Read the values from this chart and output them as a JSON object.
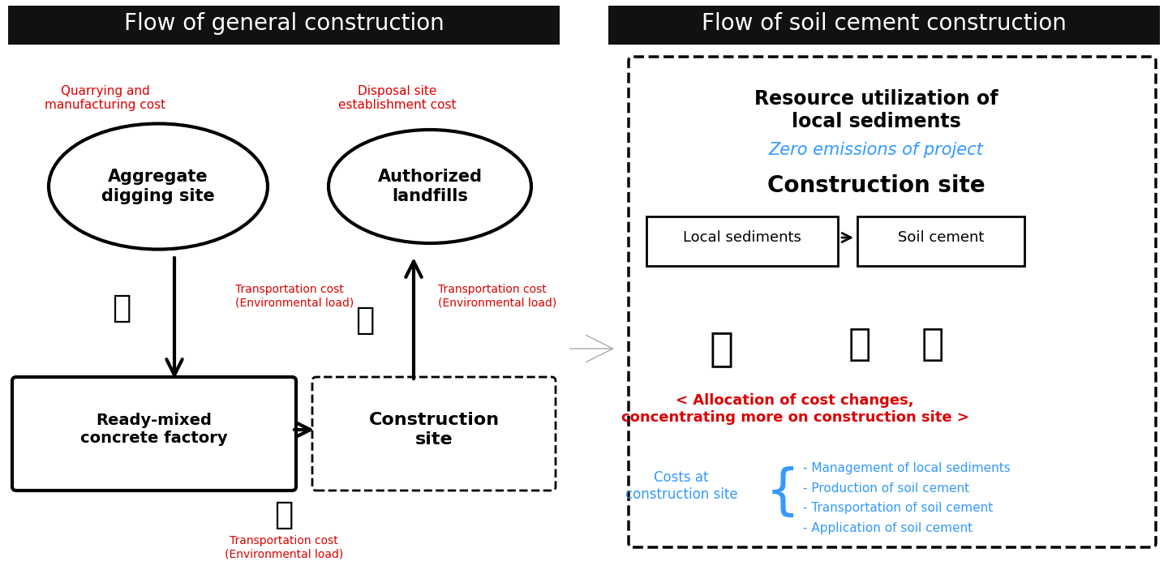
{
  "left_title": "Flow of general construction",
  "right_title": "Flow of soil cement construction",
  "title_bg": "#111111",
  "title_color": "#ffffff",
  "title_fontsize": 20,
  "left_ellipse1_text": "Aggregate\ndigging site",
  "left_ellipse2_text": "Authorized\nlandfills",
  "left_box1_text": "Ready-mixed\nconcrete factory",
  "left_box2_text": "Construction\nsite",
  "red_text1": "Quarrying and\nmanufacturing cost",
  "red_text2": "Disposal site\nestablishment cost",
  "red_text3": "Transportation cost\n(Environmental load)",
  "red_text4": "Transportation cost\n(Environmental load)",
  "red_text5": "Transportation cost\n(Environmental load)",
  "right_bold1": "Resource utilization of\nlocal sediments",
  "right_blue1": "Zero emissions of project",
  "right_bold2": "Construction site",
  "right_box1": "Local sediments",
  "right_box2": "Soil cement",
  "right_red1": "< Allocation of cost changes,\nconcentrating more on construction site >",
  "right_blue2": "Costs at\nconstruction site",
  "right_list": "- Management of local sediments\n- Production of soil cement\n- Transportation of soil cement\n- Application of soil cement",
  "bg_color": "#ffffff",
  "red_color": "#dd0000",
  "blue_color": "#3399ff",
  "black_color": "#000000"
}
